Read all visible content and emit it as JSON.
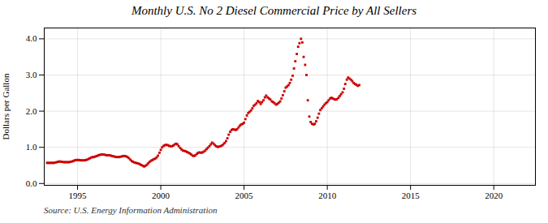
{
  "chart_data": {
    "type": "scatter",
    "title": "Monthly U.S. No 2 Diesel Commercial Price by All Sellers",
    "ylabel": "Dollars per Gallon",
    "annotation": "Source: U.S. Energy Information Administration",
    "color": "#cc0000",
    "marker": "square",
    "grid": true,
    "xlim": [
      1993.0,
      2022.5
    ],
    "ylim": [
      -0.05,
      4.3
    ],
    "xticks": [
      1995,
      2000,
      2005,
      2010,
      2015,
      2020
    ],
    "yticks": [
      {
        "value": 0.0,
        "label": "0.0"
      },
      {
        "value": 1.0,
        "label": "1.0"
      },
      {
        "value": 2.0,
        "label": "2.0"
      },
      {
        "value": 3.0,
        "label": "3.0"
      },
      {
        "value": 4.0,
        "label": "4.0"
      }
    ],
    "x": [
      1993.17,
      1993.25,
      1993.33,
      1993.42,
      1993.5,
      1993.58,
      1993.67,
      1993.75,
      1993.83,
      1993.92,
      1994.0,
      1994.08,
      1994.17,
      1994.25,
      1994.33,
      1994.42,
      1994.5,
      1994.58,
      1994.67,
      1994.75,
      1994.83,
      1994.92,
      1995.0,
      1995.08,
      1995.17,
      1995.25,
      1995.33,
      1995.42,
      1995.5,
      1995.58,
      1995.67,
      1995.75,
      1995.83,
      1995.92,
      1996.0,
      1996.08,
      1996.17,
      1996.25,
      1996.33,
      1996.42,
      1996.5,
      1996.58,
      1996.67,
      1996.75,
      1996.83,
      1996.92,
      1997.0,
      1997.08,
      1997.17,
      1997.25,
      1997.33,
      1997.42,
      1997.5,
      1997.58,
      1997.67,
      1997.75,
      1997.83,
      1997.92,
      1998.0,
      1998.08,
      1998.17,
      1998.25,
      1998.33,
      1998.42,
      1998.5,
      1998.58,
      1998.67,
      1998.75,
      1998.83,
      1998.92,
      1999.0,
      1999.08,
      1999.17,
      1999.25,
      1999.33,
      1999.42,
      1999.5,
      1999.58,
      1999.67,
      1999.75,
      1999.83,
      1999.92,
      2000.0,
      2000.08,
      2000.17,
      2000.25,
      2000.33,
      2000.42,
      2000.5,
      2000.58,
      2000.67,
      2000.75,
      2000.83,
      2000.92,
      2001.0,
      2001.08,
      2001.17,
      2001.25,
      2001.33,
      2001.42,
      2001.5,
      2001.58,
      2001.67,
      2001.75,
      2001.83,
      2001.92,
      2002.0,
      2002.08,
      2002.17,
      2002.25,
      2002.33,
      2002.42,
      2002.5,
      2002.58,
      2002.67,
      2002.75,
      2002.83,
      2002.92,
      2003.0,
      2003.08,
      2003.17,
      2003.25,
      2003.33,
      2003.42,
      2003.5,
      2003.58,
      2003.67,
      2003.75,
      2003.83,
      2003.92,
      2004.0,
      2004.08,
      2004.17,
      2004.25,
      2004.33,
      2004.42,
      2004.5,
      2004.58,
      2004.67,
      2004.75,
      2004.83,
      2004.92,
      2005.0,
      2005.08,
      2005.17,
      2005.25,
      2005.33,
      2005.42,
      2005.5,
      2005.58,
      2005.67,
      2005.75,
      2005.83,
      2005.92,
      2006.0,
      2006.08,
      2006.17,
      2006.25,
      2006.33,
      2006.42,
      2006.5,
      2006.58,
      2006.67,
      2006.75,
      2006.83,
      2006.92,
      2007.0,
      2007.08,
      2007.17,
      2007.25,
      2007.33,
      2007.42,
      2007.5,
      2007.58,
      2007.67,
      2007.75,
      2007.83,
      2007.92,
      2008.0,
      2008.08,
      2008.17,
      2008.25,
      2008.33,
      2008.42,
      2008.5,
      2008.58,
      2008.67,
      2008.75,
      2008.83,
      2008.92,
      2009.0,
      2009.08,
      2009.17,
      2009.25,
      2009.33,
      2009.42,
      2009.5,
      2009.58,
      2009.67,
      2009.75,
      2009.83,
      2009.92,
      2010.0,
      2010.08,
      2010.17,
      2010.25,
      2010.33,
      2010.42,
      2010.5,
      2010.58,
      2010.67,
      2010.75,
      2010.83,
      2010.92,
      2011.0,
      2011.08,
      2011.17,
      2011.25,
      2011.33,
      2011.42,
      2011.5,
      2011.58,
      2011.67,
      2011.75,
      2011.83,
      2011.92
    ],
    "values": [
      0.57,
      0.57,
      0.57,
      0.57,
      0.57,
      0.57,
      0.58,
      0.59,
      0.6,
      0.61,
      0.6,
      0.6,
      0.59,
      0.59,
      0.59,
      0.59,
      0.59,
      0.6,
      0.61,
      0.62,
      0.64,
      0.65,
      0.65,
      0.65,
      0.64,
      0.64,
      0.64,
      0.64,
      0.65,
      0.66,
      0.68,
      0.7,
      0.72,
      0.73,
      0.73,
      0.75,
      0.76,
      0.78,
      0.79,
      0.8,
      0.8,
      0.8,
      0.79,
      0.78,
      0.78,
      0.78,
      0.77,
      0.76,
      0.75,
      0.74,
      0.73,
      0.73,
      0.73,
      0.74,
      0.75,
      0.76,
      0.76,
      0.75,
      0.73,
      0.7,
      0.66,
      0.62,
      0.6,
      0.58,
      0.57,
      0.56,
      0.55,
      0.53,
      0.51,
      0.49,
      0.47,
      0.49,
      0.52,
      0.56,
      0.6,
      0.63,
      0.65,
      0.67,
      0.69,
      0.72,
      0.77,
      0.85,
      0.93,
      1.0,
      1.04,
      1.06,
      1.07,
      1.06,
      1.04,
      1.03,
      1.03,
      1.05,
      1.08,
      1.1,
      1.08,
      1.03,
      0.98,
      0.94,
      0.91,
      0.9,
      0.89,
      0.87,
      0.85,
      0.83,
      0.8,
      0.77,
      0.76,
      0.78,
      0.82,
      0.85,
      0.86,
      0.85,
      0.86,
      0.88,
      0.91,
      0.95,
      0.99,
      1.03,
      1.08,
      1.13,
      1.1,
      1.06,
      1.03,
      1.01,
      1.02,
      1.03,
      1.05,
      1.08,
      1.12,
      1.17,
      1.25,
      1.35,
      1.43,
      1.48,
      1.5,
      1.49,
      1.48,
      1.5,
      1.55,
      1.6,
      1.63,
      1.65,
      1.68,
      1.78,
      1.88,
      1.95,
      1.98,
      2.02,
      2.08,
      2.15,
      2.18,
      2.22,
      2.28,
      2.25,
      2.2,
      2.25,
      2.3,
      2.38,
      2.43,
      2.38,
      2.35,
      2.32,
      2.27,
      2.25,
      2.22,
      2.18,
      2.2,
      2.23,
      2.27,
      2.35,
      2.44,
      2.55,
      2.65,
      2.68,
      2.72,
      2.78,
      2.87,
      2.98,
      3.18,
      3.38,
      3.58,
      3.78,
      3.88,
      4.0,
      3.9,
      3.5,
      3.28,
      3.0,
      2.3,
      1.85,
      1.7,
      1.65,
      1.63,
      1.65,
      1.72,
      1.82,
      1.93,
      2.03,
      2.08,
      2.13,
      2.18,
      2.22,
      2.25,
      2.3,
      2.35,
      2.37,
      2.35,
      2.33,
      2.32,
      2.33,
      2.37,
      2.42,
      2.47,
      2.52,
      2.62,
      2.75,
      2.87,
      2.93,
      2.9,
      2.87,
      2.83,
      2.78,
      2.75,
      2.73,
      2.7,
      2.72
    ]
  }
}
